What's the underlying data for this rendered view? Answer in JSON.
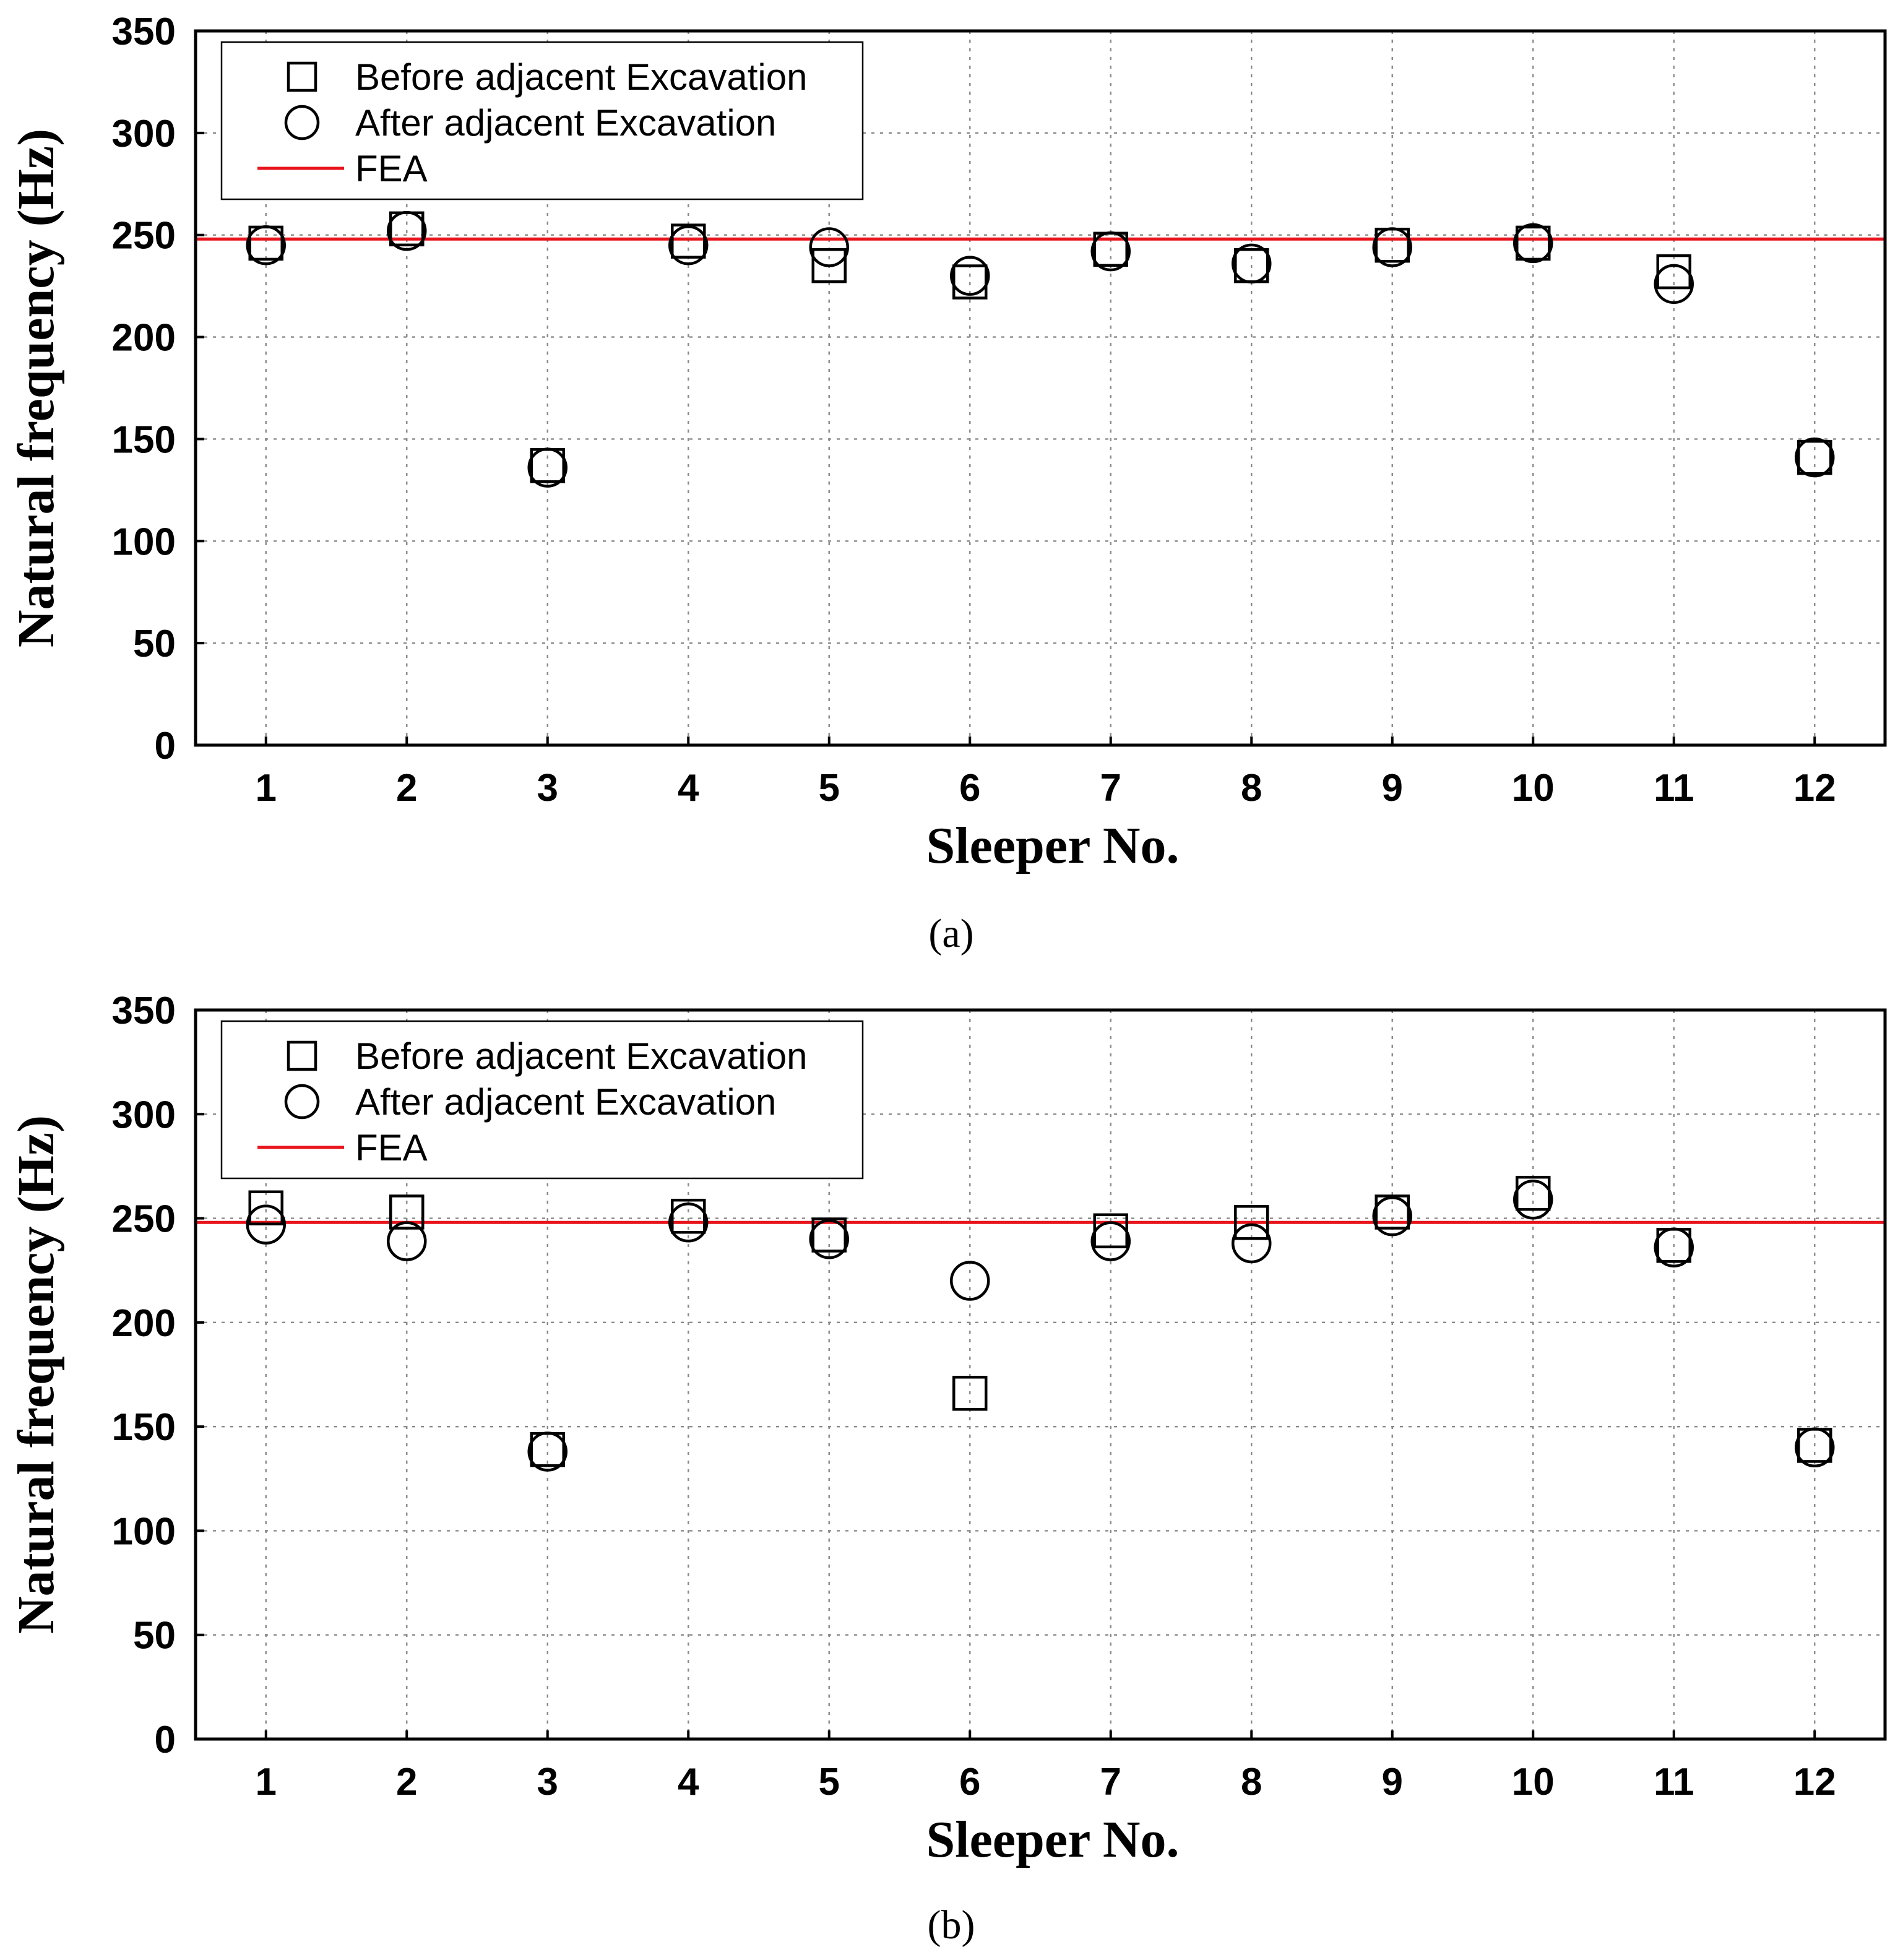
{
  "colors": {
    "fea": "#e8141c",
    "marker": "#000000",
    "grid": "#8a8a8a"
  },
  "chart_data": [
    {
      "type": "scatter",
      "caption": "(a)",
      "xlabel": "Sleeper No.",
      "ylabel": "Natural frequency (Hz)",
      "x": [
        1,
        2,
        3,
        4,
        5,
        6,
        7,
        8,
        9,
        10,
        11,
        12
      ],
      "xlim": [
        0.5,
        12.5
      ],
      "ylim": [
        0,
        350
      ],
      "yticks": [
        0,
        50,
        100,
        150,
        200,
        250,
        300,
        350
      ],
      "grid": true,
      "legend_position": "top-left",
      "series": [
        {
          "name": "Before adjacent Excavation",
          "marker": "square",
          "values": [
            246,
            253,
            137,
            247,
            235,
            227,
            243,
            235,
            245,
            246,
            232,
            141
          ]
        },
        {
          "name": "After adjacent Excavation",
          "marker": "circle",
          "values": [
            245,
            252,
            136,
            245,
            244,
            230,
            242,
            236,
            244,
            246,
            226,
            141
          ]
        }
      ],
      "reference_line": {
        "name": "FEA",
        "y": 248
      }
    },
    {
      "type": "scatter",
      "caption": "(b)",
      "xlabel": "Sleeper No.",
      "ylabel": "Natural frequency (Hz)",
      "x": [
        1,
        2,
        3,
        4,
        5,
        6,
        7,
        8,
        9,
        10,
        11,
        12
      ],
      "xlim": [
        0.5,
        12.5
      ],
      "ylim": [
        0,
        350
      ],
      "yticks": [
        0,
        50,
        100,
        150,
        200,
        250,
        300,
        350
      ],
      "grid": true,
      "legend_position": "top-left",
      "series": [
        {
          "name": "Before adjacent Excavation",
          "marker": "square",
          "values": [
            255,
            253,
            139,
            251,
            242,
            166,
            244,
            248,
            253,
            262,
            237,
            141
          ]
        },
        {
          "name": "After adjacent Excavation",
          "marker": "circle",
          "values": [
            247,
            239,
            138,
            248,
            240,
            220,
            239,
            238,
            251,
            259,
            236,
            140
          ]
        }
      ],
      "reference_line": {
        "name": "FEA",
        "y": 248
      }
    }
  ]
}
